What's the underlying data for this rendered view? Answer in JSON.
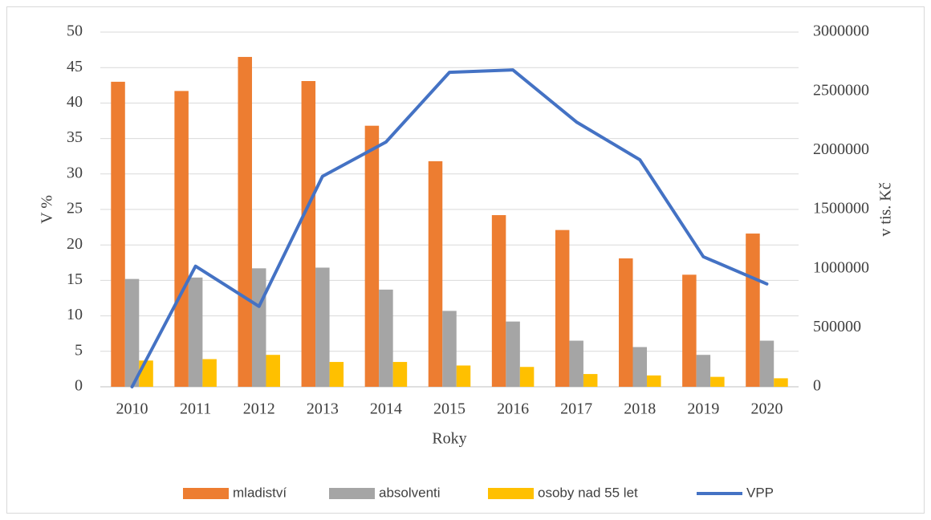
{
  "chart_data": {
    "type": "bar",
    "categories": [
      "2010",
      "2011",
      "2012",
      "2013",
      "2014",
      "2015",
      "2016",
      "2017",
      "2018",
      "2019",
      "2020"
    ],
    "series": [
      {
        "name": "mladiství",
        "color": "#ed7d31",
        "values": [
          43,
          41.7,
          46.5,
          43.1,
          36.8,
          31.8,
          24.2,
          22.1,
          18.1,
          15.8,
          21.6
        ]
      },
      {
        "name": "absolventi",
        "color": "#a5a5a5",
        "values": [
          15.2,
          15.4,
          16.7,
          16.8,
          13.7,
          10.7,
          9.2,
          6.5,
          5.6,
          4.5,
          6.5
        ]
      },
      {
        "name": "osoby nad 55 let",
        "color": "#ffc000",
        "values": [
          3.7,
          3.9,
          4.5,
          3.5,
          3.5,
          3.0,
          2.8,
          1.8,
          1.6,
          1.4,
          1.2
        ]
      },
      {
        "name": "VPP",
        "color": "#4472c4",
        "type": "line",
        "axis": "y2",
        "values": [
          0,
          1020000,
          680000,
          1780000,
          2070000,
          2660000,
          2680000,
          2240000,
          1920000,
          1100000,
          870000
        ]
      }
    ],
    "x_label": "Roky",
    "y_label": "V %",
    "y2_label": "v tis. Kč",
    "ylim": [
      0,
      50
    ],
    "yticks": [
      0,
      5,
      10,
      15,
      20,
      25,
      30,
      35,
      40,
      45,
      50
    ],
    "y2lim": [
      0,
      3000000
    ],
    "y2ticks": [
      0,
      500000,
      1000000,
      1500000,
      2000000,
      2500000,
      3000000
    ],
    "grid": true,
    "legend": "bottom"
  }
}
